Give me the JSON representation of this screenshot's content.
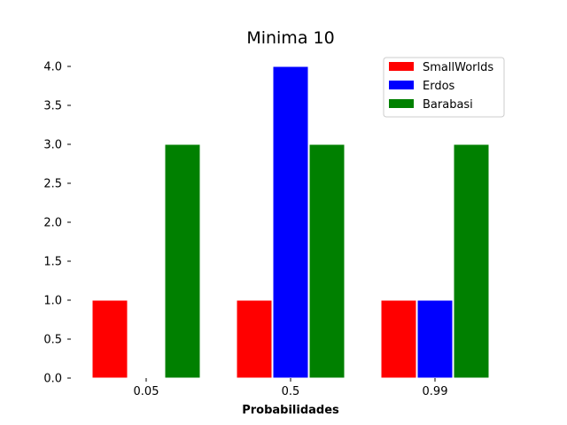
{
  "chart_data": {
    "type": "bar",
    "title": "Minima 10",
    "xlabel": "Probabilidades",
    "ylabel": "",
    "categories": [
      "0.05",
      "0.5",
      "0.99"
    ],
    "ylim": [
      0,
      4.0
    ],
    "yticks": [
      "0.0",
      "0.5",
      "1.0",
      "1.5",
      "2.0",
      "2.5",
      "3.0",
      "3.5",
      "4.0"
    ],
    "legend_position": "top-right",
    "grid": false,
    "series": [
      {
        "name": "SmallWorlds",
        "color": "#ff0000",
        "values": [
          1,
          1,
          1
        ]
      },
      {
        "name": "Erdos",
        "color": "#0000ff",
        "values": [
          0,
          4,
          1
        ]
      },
      {
        "name": "Barabasi",
        "color": "#008000",
        "values": [
          3,
          3,
          3
        ]
      }
    ]
  }
}
